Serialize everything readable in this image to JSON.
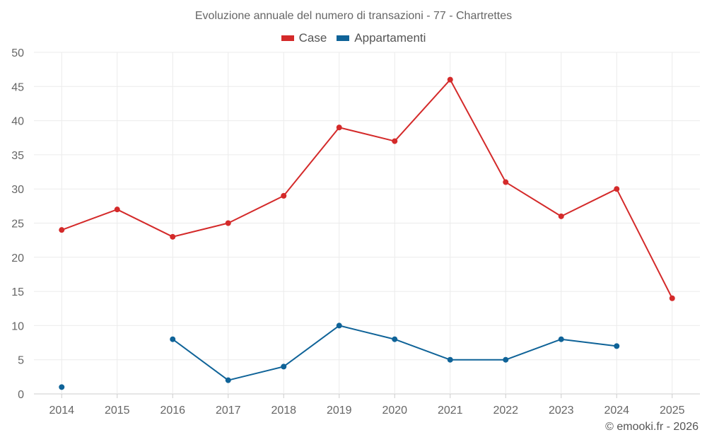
{
  "chart_data": {
    "type": "line",
    "title": "Evoluzione annuale del numero di transazioni - 77 - Chartrettes",
    "categories": [
      "2014",
      "2015",
      "2016",
      "2017",
      "2018",
      "2019",
      "2020",
      "2021",
      "2022",
      "2023",
      "2024",
      "2025"
    ],
    "ylim": [
      0,
      50
    ],
    "yticks": [
      0,
      5,
      10,
      15,
      20,
      25,
      30,
      35,
      40,
      45,
      50
    ],
    "grid": true,
    "legend_position": "top-center",
    "series": [
      {
        "name": "Case",
        "color": "#d42a2a",
        "values": [
          24,
          27,
          23,
          25,
          29,
          39,
          37,
          46,
          31,
          26,
          30,
          14
        ]
      },
      {
        "name": "Appartamenti",
        "color": "#0f6398",
        "values": [
          1,
          null,
          8,
          2,
          4,
          10,
          8,
          5,
          5,
          8,
          7,
          null
        ]
      }
    ]
  },
  "legend": {
    "case_label": "Case",
    "appartamenti_label": "Appartamenti"
  },
  "credit": "© emooki.fr - 2026"
}
